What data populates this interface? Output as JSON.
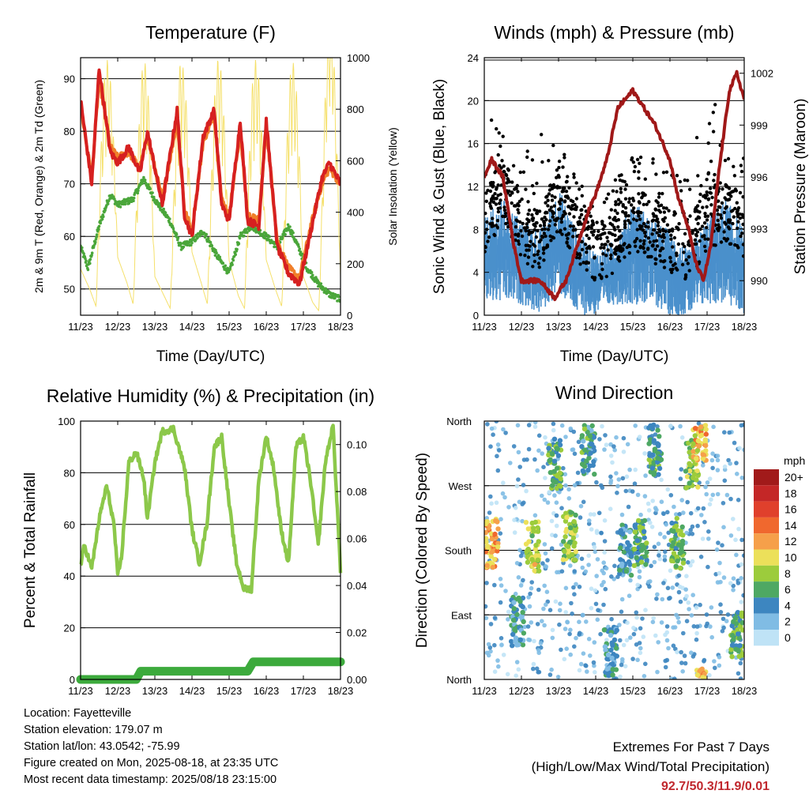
{
  "x_ticks": [
    "11/23",
    "12/23",
    "13/23",
    "14/23",
    "15/23",
    "16/23",
    "17/23",
    "18/23"
  ],
  "xlabel": "Time (Day/UTC)",
  "chart_data": [
    {
      "type": "line",
      "title": "Temperature (F)",
      "ylabel": "2m & 9m T (Red, Orange) & 2m Td (Green)",
      "ylabel_right": "Solar Insolation (Yellow)",
      "ylim": [
        45,
        94
      ],
      "yticks": [
        50,
        60,
        70,
        80,
        90
      ],
      "ylim_right": [
        0,
        1000
      ],
      "yticks_right": [
        0,
        200,
        400,
        600,
        800,
        1000
      ],
      "grid_y": [
        50,
        60,
        70,
        80,
        90
      ],
      "colors": {
        "t2m": "#d62020",
        "t9m": "#f07f2a",
        "td": "#4aa63a",
        "solar": "#f5e06a"
      },
      "series": [
        {
          "name": "2m T",
          "axis": "left",
          "x": [
            0,
            0.3,
            0.5,
            0.8,
            1.0,
            1.3,
            1.6,
            1.8,
            2.2,
            2.6,
            2.8,
            3.0,
            3.3,
            3.6,
            3.8,
            4.0,
            4.3,
            4.5,
            4.8,
            5.0,
            5.3,
            5.6,
            5.9,
            6.2,
            6.5,
            6.7,
            7.0
          ],
          "y": [
            86,
            70,
            92,
            76,
            74,
            77,
            72,
            80,
            66,
            84,
            64,
            60,
            79,
            84,
            66,
            63,
            82,
            63,
            62,
            82,
            58,
            53,
            51,
            61,
            71,
            74,
            70
          ]
        },
        {
          "name": "9m T",
          "axis": "left",
          "x": [
            0,
            0.3,
            0.5,
            0.8,
            1.0,
            1.3,
            1.6,
            1.8,
            2.2,
            2.6,
            2.8,
            3.0,
            3.3,
            3.6,
            3.8,
            4.0,
            4.3,
            4.5,
            4.8,
            5.0,
            5.3,
            5.6,
            5.9,
            6.2,
            6.5,
            6.7,
            7.0
          ],
          "y": [
            85,
            71,
            90,
            77,
            75,
            76,
            73,
            79,
            67,
            82,
            65,
            61,
            78,
            83,
            67,
            64,
            80,
            64,
            63,
            81,
            59,
            54,
            52,
            62,
            70,
            73,
            70
          ]
        },
        {
          "name": "2m Td",
          "axis": "left",
          "x": [
            0,
            0.2,
            0.5,
            0.8,
            1.0,
            1.4,
            1.7,
            2.0,
            2.4,
            2.7,
            3.0,
            3.3,
            3.7,
            4.0,
            4.3,
            4.6,
            5.0,
            5.3,
            5.6,
            5.8,
            6.1,
            6.4,
            6.7,
            7.0
          ],
          "y": [
            58,
            54,
            62,
            68,
            66,
            67,
            71,
            67,
            63,
            58,
            59,
            61,
            56,
            53,
            60,
            62,
            60,
            58,
            62,
            59,
            54,
            51,
            49,
            48
          ]
        },
        {
          "name": "Solar Insolation",
          "axis": "right",
          "x": [
            0,
            0.25,
            0.5,
            0.75,
            1.0,
            1.25,
            1.5,
            1.75,
            2.0,
            2.25,
            2.5,
            2.75,
            3.0,
            3.25,
            3.5,
            3.75,
            4.0,
            4.25,
            4.5,
            4.75,
            5.0,
            5.25,
            5.5,
            5.75,
            6.0,
            6.25,
            6.5,
            6.75,
            7.0
          ],
          "y": [
            720,
            400,
            0,
            60,
            900,
            500,
            0,
            50,
            600,
            300,
            0,
            40,
            980,
            500,
            0,
            80,
            850,
            300,
            0,
            60,
            860,
            400,
            0,
            30,
            600,
            200,
            0,
            850,
            600
          ]
        }
      ]
    },
    {
      "type": "scatter",
      "title": "Winds (mph) & Pressure (mb)",
      "ylabel": "Sonic Wind & Gust (Blue, Black)",
      "ylabel_right": "Station Pressure (Maroon)",
      "ylim": [
        0,
        24
      ],
      "yticks": [
        0,
        4,
        8,
        12,
        16,
        20,
        24
      ],
      "ylim_right": [
        988.0,
        1002.9
      ],
      "yticks_right": [
        990,
        993,
        996,
        999,
        1002
      ],
      "grid_y": [
        4,
        8,
        12,
        16,
        20,
        24
      ],
      "colors": {
        "wind": "#4a90cc",
        "gust": "#000000",
        "pressure": "#a01818"
      },
      "wind_envelope": {
        "x": [
          0,
          0.5,
          1.0,
          1.5,
          2.0,
          2.5,
          3.0,
          3.5,
          4.0,
          4.5,
          5.0,
          5.5,
          6.0,
          6.5,
          7.0
        ],
        "mean": [
          5,
          6,
          5,
          4,
          7,
          4,
          3,
          4,
          6,
          5,
          4,
          3,
          5,
          6,
          4
        ],
        "spread": [
          4,
          5,
          4,
          4,
          5,
          4,
          3,
          3,
          5,
          4,
          4,
          3,
          4,
          5,
          4
        ]
      },
      "gust_envelope": {
        "x": [
          0,
          0.5,
          1.0,
          1.5,
          2.0,
          2.5,
          3.0,
          3.5,
          4.0,
          4.5,
          5.0,
          5.5,
          6.0,
          6.5,
          7.0
        ],
        "mean": [
          8,
          12,
          8,
          7,
          11,
          8,
          6,
          7,
          9,
          8,
          7,
          6,
          9,
          10,
          8
        ],
        "max": [
          19,
          17,
          14,
          18,
          17,
          13,
          10,
          13,
          15,
          15,
          13,
          14,
          22,
          17,
          15
        ]
      },
      "pressure": {
        "x": [
          0,
          0.2,
          0.5,
          0.8,
          1.0,
          1.5,
          1.9,
          2.2,
          2.5,
          2.8,
          3.0,
          3.3,
          3.6,
          4.0,
          4.3,
          4.6,
          5.0,
          5.2,
          5.5,
          5.7,
          5.9,
          6.1,
          6.3,
          6.6,
          6.8,
          7.0
        ],
        "y": [
          996,
          997,
          996,
          992,
          990,
          990,
          989,
          990,
          992,
          994,
          995,
          997,
          1000,
          1001,
          1000,
          999,
          997,
          995,
          993,
          991,
          990,
          992,
          996,
          1001,
          1002,
          1000.5
        ]
      }
    },
    {
      "type": "line",
      "title": "Relative Humidity (%) & Precipitation (in)",
      "ylabel": "Percent & Total Rainfall",
      "ylim": [
        0,
        100
      ],
      "yticks": [
        0,
        20,
        40,
        60,
        80,
        100
      ],
      "ylim_right": [
        0,
        0.11
      ],
      "yticks_right": [
        "0.00",
        "0.02",
        "0.04",
        "0.06",
        "0.08",
        "0.10"
      ],
      "grid_y": [
        20,
        40,
        60,
        80
      ],
      "colors": {
        "rh": "#8cc84a",
        "precip": "#3caa3c"
      },
      "series": [
        {
          "name": "Relative Humidity",
          "axis": "left",
          "x": [
            0,
            0.1,
            0.3,
            0.5,
            0.7,
            0.9,
            1.0,
            1.1,
            1.3,
            1.5,
            1.7,
            1.8,
            2.0,
            2.2,
            2.5,
            2.8,
            3.0,
            3.2,
            3.4,
            3.6,
            3.8,
            4.0,
            4.2,
            4.4,
            4.6,
            4.8,
            5.0,
            5.2,
            5.4,
            5.6,
            5.8,
            6.0,
            6.2,
            6.4,
            6.6,
            6.8,
            7.0
          ],
          "y": [
            44,
            52,
            43,
            62,
            75,
            60,
            40,
            47,
            84,
            88,
            78,
            62,
            84,
            96,
            97,
            82,
            58,
            45,
            60,
            90,
            94,
            68,
            45,
            35,
            35,
            77,
            94,
            82,
            58,
            45,
            90,
            94,
            76,
            52,
            85,
            98,
            42
          ]
        },
        {
          "name": "Precipitation",
          "axis": "right",
          "x": [
            0,
            1.5,
            1.62,
            4.5,
            4.65,
            7.0
          ],
          "y": [
            0.0,
            0.0,
            0.0035,
            0.0035,
            0.0075,
            0.0075
          ]
        }
      ]
    },
    {
      "type": "scatter",
      "title": "Wind Direction",
      "ylabel": "Direction (Colored By Speed)",
      "yticks": [
        "North",
        "East",
        "South",
        "West",
        "North"
      ],
      "ylim": [
        0,
        360
      ],
      "legend_title": "mph",
      "legend_labels": [
        "20+",
        "18",
        "16",
        "14",
        "12",
        "10",
        "8",
        "6",
        "4",
        "2",
        "0"
      ],
      "legend_colors": [
        "#a11a1a",
        "#c42727",
        "#e0402c",
        "#f0682e",
        "#f6a04a",
        "#ece05a",
        "#9ccc3c",
        "#4ea863",
        "#3d86c0",
        "#80bce4",
        "#bfe3f6"
      ],
      "clusters": [
        {
          "day": 0.2,
          "dir": 190,
          "speed": 12
        },
        {
          "day": 0.9,
          "dir": 80,
          "speed": 4
        },
        {
          "day": 1.3,
          "dir": 185,
          "speed": 9
        },
        {
          "day": 1.9,
          "dir": 300,
          "speed": 6
        },
        {
          "day": 2.3,
          "dir": 200,
          "speed": 8
        },
        {
          "day": 2.8,
          "dir": 320,
          "speed": 5
        },
        {
          "day": 3.4,
          "dir": 40,
          "speed": 4
        },
        {
          "day": 3.8,
          "dir": 180,
          "speed": 4
        },
        {
          "day": 4.2,
          "dir": 190,
          "speed": 6
        },
        {
          "day": 4.6,
          "dir": 320,
          "speed": 5
        },
        {
          "day": 5.2,
          "dir": 190,
          "speed": 7
        },
        {
          "day": 5.6,
          "dir": 300,
          "speed": 8
        },
        {
          "day": 5.8,
          "dir": 340,
          "speed": 11
        },
        {
          "day": 6.8,
          "dir": 60,
          "speed": 6
        }
      ]
    }
  ],
  "station": {
    "location": "Location: Fayetteville",
    "elevation": "Station elevation: 179.07 m",
    "latlon": "Station lat/lon: 43.0542; -75.99",
    "created": "Figure created on Mon, 2025-08-18, at 23:35 UTC",
    "recent": "Most recent data timestamp: 2025/08/18 23:15:00"
  },
  "extremes": {
    "heading": "Extremes For Past 7 Days",
    "subheading": "(High/Low/Max Wind/Total Precipitation)",
    "values": "92.7/50.3/11.9/0.01"
  }
}
